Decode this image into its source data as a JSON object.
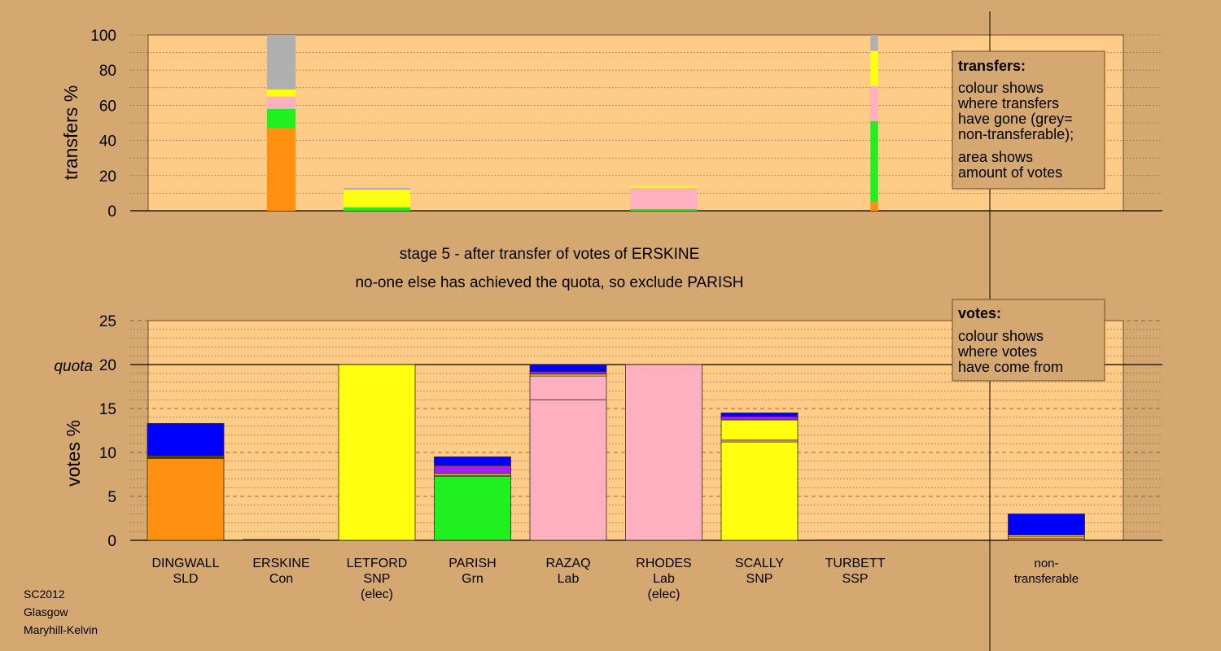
{
  "colors": {
    "background": "#d4a870",
    "plot_background": "#ffcc88",
    "box_background": "#d4a870",
    "SLD": "#ff9010",
    "Con": "#0000ff",
    "SNP": "#ffff10",
    "Grn": "#20f020",
    "Lab": "#ffb0c0",
    "SSP": "#a020f0",
    "nontransferable": "#b0b0b0"
  },
  "footer": {
    "line1": "SC2012",
    "line2": "Glasgow",
    "line3": "Maryhill-Kelvin"
  },
  "stage_text": {
    "line1": "stage 5 - after transfer of votes of ERSKINE",
    "line2": "no-one else has achieved the quota, so exclude PARISH"
  },
  "transfers_box": {
    "title": "transfers:",
    "lines": [
      "colour shows",
      "where transfers",
      "have gone (grey=",
      "non-transferable);"
    ],
    "lines2": [
      "area shows",
      "amount of votes"
    ]
  },
  "votes_box": {
    "title": "votes:",
    "lines": [
      "colour shows",
      "where votes",
      "have come from"
    ]
  },
  "candidates": [
    {
      "name": "DINGWALL",
      "party": "SLD",
      "note": ""
    },
    {
      "name": "ERSKINE",
      "party": "Con",
      "note": ""
    },
    {
      "name": "LETFORD",
      "party": "SNP",
      "note": "(elec)"
    },
    {
      "name": "PARISH",
      "party": "Grn",
      "note": ""
    },
    {
      "name": "RAZAQ",
      "party": "Lab",
      "note": ""
    },
    {
      "name": "RHODES",
      "party": "Lab",
      "note": "(elec)"
    },
    {
      "name": "SCALLY",
      "party": "SNP",
      "note": ""
    },
    {
      "name": "TURBETT",
      "party": "SSP",
      "note": ""
    },
    {
      "name": "non-",
      "party": "transferable",
      "note": ""
    }
  ],
  "chart_data": [
    {
      "type": "bar",
      "ylabel": "transfers %",
      "ylim": [
        0,
        100
      ],
      "yticks": [
        0,
        20,
        40,
        60,
        80,
        100
      ],
      "bars": [
        {
          "position": 2,
          "width": 0.3,
          "segments": [
            {
              "color": "SLD",
              "value": 47
            },
            {
              "color": "Grn",
              "value": 11
            },
            {
              "color": "Lab",
              "value": 7
            },
            {
              "color": "SNP",
              "value": 4
            },
            {
              "color": "nontransferable",
              "value": 31
            }
          ]
        },
        {
          "position": 3,
          "width": 0.7,
          "segments": [
            {
              "color": "Grn",
              "value": 2
            },
            {
              "color": "SNP",
              "value": 10
            },
            {
              "color": "nontransferable",
              "value": 1
            }
          ]
        },
        {
          "position": 6,
          "width": 0.7,
          "segments": [
            {
              "color": "Grn",
              "value": 1
            },
            {
              "color": "Lab",
              "value": 12
            },
            {
              "color": "SNP",
              "value": 1
            }
          ]
        },
        {
          "position": 8.2,
          "width": 0.08,
          "segments": [
            {
              "color": "SLD",
              "value": 5
            },
            {
              "color": "Grn",
              "value": 46
            },
            {
              "color": "Lab",
              "value": 20
            },
            {
              "color": "SNP",
              "value": 20
            },
            {
              "color": "nontransferable",
              "value": 9
            }
          ]
        }
      ]
    },
    {
      "type": "bar",
      "ylabel": "votes %",
      "ylim": [
        0,
        25
      ],
      "yticks": [
        0,
        5,
        10,
        15,
        20,
        25
      ],
      "quota": {
        "label": "quota",
        "value": 20
      },
      "categories": [
        "DINGWALL SLD",
        "ERSKINE Con",
        "LETFORD SNP (elec)",
        "PARISH Grn",
        "RAZAQ Lab",
        "RHODES Lab (elec)",
        "SCALLY SNP",
        "TURBETT SSP",
        "non-transferable"
      ],
      "bars": [
        {
          "position": 1,
          "segments": [
            {
              "color": "SLD",
              "value": 9.3
            },
            {
              "color": "Grn",
              "value": 0.1
            },
            {
              "color": "Lab",
              "value": 0.1
            },
            {
              "color": "SNP",
              "value": 0.1
            },
            {
              "color": "Con",
              "value": 3.7
            }
          ]
        },
        {
          "position": 2,
          "segments": [
            {
              "color": "Con",
              "value": 0.1
            }
          ]
        },
        {
          "position": 3,
          "segments": [
            {
              "color": "SNP",
              "value": 20
            }
          ]
        },
        {
          "position": 4,
          "segments": [
            {
              "color": "Grn",
              "value": 7.3
            },
            {
              "color": "Lab",
              "value": 0.1
            },
            {
              "color": "SNP",
              "value": 0.2
            },
            {
              "color": "SSP",
              "value": 0.9
            },
            {
              "color": "Con",
              "value": 1.0
            }
          ]
        },
        {
          "position": 5,
          "segments": [
            {
              "color": "Lab",
              "value": 16
            },
            {
              "color": "Lab",
              "value": 2.7
            },
            {
              "color": "SNP",
              "value": 0.2
            },
            {
              "color": "SSP",
              "value": 0.3
            },
            {
              "color": "Con",
              "value": 0.8
            }
          ]
        },
        {
          "position": 6,
          "segments": [
            {
              "color": "Lab",
              "value": 20
            }
          ]
        },
        {
          "position": 7,
          "segments": [
            {
              "color": "SNP",
              "value": 11.2
            },
            {
              "color": "Lab",
              "value": 0.2
            },
            {
              "color": "SNP",
              "value": 2.3
            },
            {
              "color": "SSP",
              "value": 0.4
            },
            {
              "color": "Con",
              "value": 0.4
            }
          ]
        },
        {
          "position": 8,
          "segments": [
            {
              "color": "SSP",
              "value": 0.05
            }
          ]
        },
        {
          "position": 10,
          "segments": [
            {
              "color": "SLD",
              "value": 0.2
            },
            {
              "color": "Lab",
              "value": 0.2
            },
            {
              "color": "SNP",
              "value": 0.2
            },
            {
              "color": "Con",
              "value": 2.4
            }
          ]
        }
      ]
    }
  ]
}
